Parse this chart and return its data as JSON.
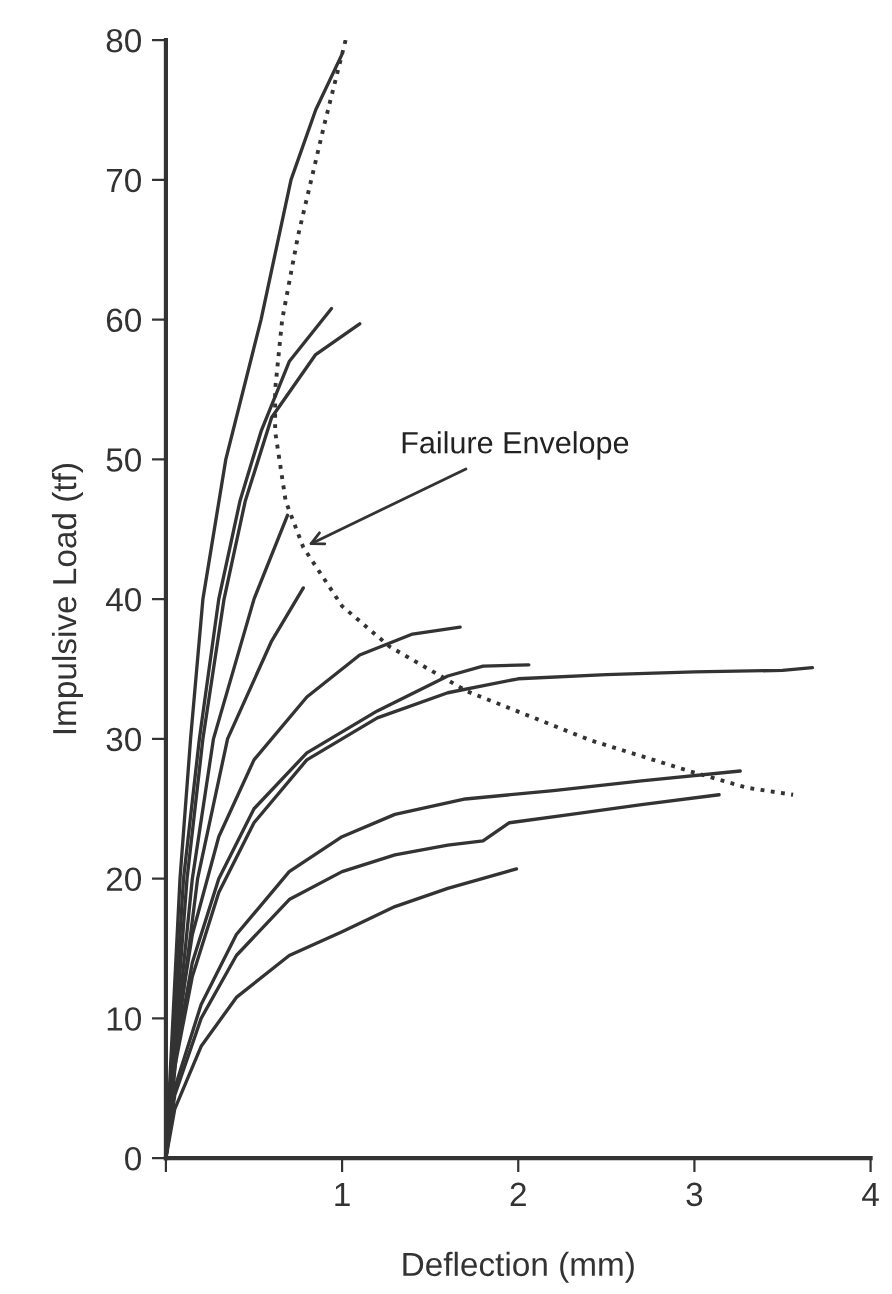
{
  "chart_data": {
    "type": "line",
    "xlabel": "Deflection (mm)",
    "ylabel": "Impulsive Load (tf)",
    "xlim": [
      0,
      4
    ],
    "ylim": [
      0,
      80
    ],
    "xticks": [
      {
        "value": 0,
        "label": null
      },
      1,
      2,
      3,
      4
    ],
    "yticks": [
      0,
      10,
      20,
      30,
      40,
      50,
      60,
      70,
      80
    ],
    "grid": false,
    "legend": false,
    "marker": "none",
    "series": [
      {
        "color": "#333333",
        "line_style": "solid",
        "x": [
          0,
          0.04,
          0.08,
          0.14,
          0.21,
          0.34,
          0.54,
          0.71,
          0.85,
          1.0
        ],
        "values": [
          0,
          10,
          20,
          30,
          40,
          50,
          60,
          70,
          75,
          79
        ]
      },
      {
        "color": "#333333",
        "line_style": "solid",
        "x": [
          0,
          0.05,
          0.1,
          0.19,
          0.3,
          0.42,
          0.54,
          0.7,
          0.94
        ],
        "values": [
          0,
          10,
          20,
          30,
          40,
          47,
          52,
          57,
          60.8
        ]
      },
      {
        "color": "#333333",
        "line_style": "solid",
        "x": [
          0,
          0.06,
          0.12,
          0.21,
          0.33,
          0.45,
          0.6,
          0.85,
          1.1
        ],
        "values": [
          0,
          10,
          20,
          30,
          40,
          47,
          53,
          57.5,
          59.7
        ]
      },
      {
        "color": "#333333",
        "line_style": "solid",
        "x": [
          0,
          0.07,
          0.15,
          0.27,
          0.5,
          0.69
        ],
        "values": [
          0,
          10,
          20,
          30,
          40,
          46
        ]
      },
      {
        "color": "#333333",
        "line_style": "solid",
        "x": [
          0,
          0.08,
          0.18,
          0.35,
          0.6,
          0.78
        ],
        "values": [
          0,
          10,
          20,
          30,
          37,
          40.8
        ]
      },
      {
        "color": "#333333",
        "line_style": "solid",
        "x": [
          0,
          0.05,
          0.15,
          0.3,
          0.5,
          0.8,
          1.1,
          1.4,
          1.67
        ],
        "values": [
          0,
          8,
          16,
          23,
          28.5,
          33,
          36,
          37.5,
          38
        ]
      },
      {
        "color": "#333333",
        "line_style": "solid",
        "x": [
          0,
          0.05,
          0.15,
          0.3,
          0.5,
          0.8,
          1.2,
          1.6,
          1.8,
          2.06
        ],
        "values": [
          0,
          7,
          14,
          20,
          25,
          29,
          32,
          34.5,
          35.2,
          35.3
        ]
      },
      {
        "color": "#333333",
        "line_style": "solid",
        "x": [
          0,
          0.05,
          0.15,
          0.3,
          0.5,
          0.8,
          1.2,
          1.6,
          2.0,
          2.5,
          3.0,
          3.5,
          3.67
        ],
        "values": [
          0,
          6.5,
          13,
          19,
          24,
          28.5,
          31.5,
          33.3,
          34.3,
          34.6,
          34.8,
          34.9,
          35.1
        ]
      },
      {
        "color": "#333333",
        "line_style": "solid",
        "x": [
          0,
          0.05,
          0.2,
          0.4,
          0.7,
          1.0,
          1.3,
          1.7,
          2.2,
          2.7,
          3.26
        ],
        "values": [
          0,
          5,
          11,
          16,
          20.5,
          23,
          24.6,
          25.7,
          26.3,
          27,
          27.7
        ]
      },
      {
        "color": "#333333",
        "line_style": "solid",
        "x": [
          0,
          0.05,
          0.2,
          0.4,
          0.7,
          1.0,
          1.3,
          1.6,
          1.8,
          1.95,
          2.3,
          2.7,
          3.14
        ],
        "values": [
          0,
          4.5,
          10,
          14.5,
          18.5,
          20.5,
          21.7,
          22.4,
          22.7,
          24,
          24.6,
          25.3,
          26
        ]
      },
      {
        "color": "#333333",
        "line_style": "solid",
        "x": [
          0,
          0.05,
          0.2,
          0.4,
          0.7,
          1.0,
          1.3,
          1.6,
          1.99
        ],
        "values": [
          0,
          3.5,
          8,
          11.5,
          14.5,
          16.2,
          18,
          19.3,
          20.7
        ]
      },
      {
        "color": "#333333",
        "line_style": "dotted",
        "x": [
          1.02,
          0.9,
          0.75,
          0.66,
          0.62,
          0.62,
          0.68,
          0.78,
          1.0,
          1.27,
          1.71,
          2.41,
          2.97,
          3.3,
          3.56
        ],
        "values": [
          80,
          74,
          66,
          60,
          55,
          52,
          47,
          43.7,
          39.5,
          36.6,
          33.4,
          29.9,
          27.7,
          26.5,
          26
        ]
      }
    ],
    "annotations": [
      {
        "text": "Failure Envelope",
        "x": 0.78,
        "y": 43.7
      }
    ]
  }
}
